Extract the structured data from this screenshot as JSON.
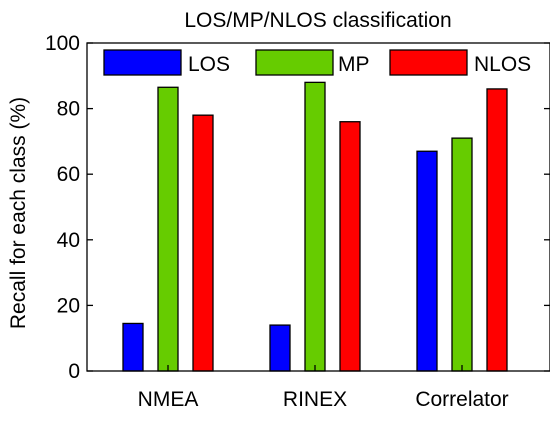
{
  "chart_data": {
    "type": "bar",
    "title": "LOS/MP/NLOS classification",
    "xlabel": "",
    "ylabel": "Recall for each class (%)",
    "ylim": [
      0,
      100
    ],
    "yticks": [
      0,
      20,
      40,
      60,
      80,
      100
    ],
    "categories": [
      "NMEA",
      "RINEX",
      "Correlator"
    ],
    "series": [
      {
        "name": "LOS",
        "color": "#0000ff",
        "values": [
          14.5,
          14.0,
          67.0
        ]
      },
      {
        "name": "MP",
        "color": "#66cc00",
        "values": [
          86.5,
          88.0,
          71.0
        ]
      },
      {
        "name": "NLOS",
        "color": "#ff0000",
        "values": [
          78.0,
          76.0,
          86.0
        ]
      }
    ],
    "legend": "top, horizontal, inside plot",
    "grid": false
  }
}
